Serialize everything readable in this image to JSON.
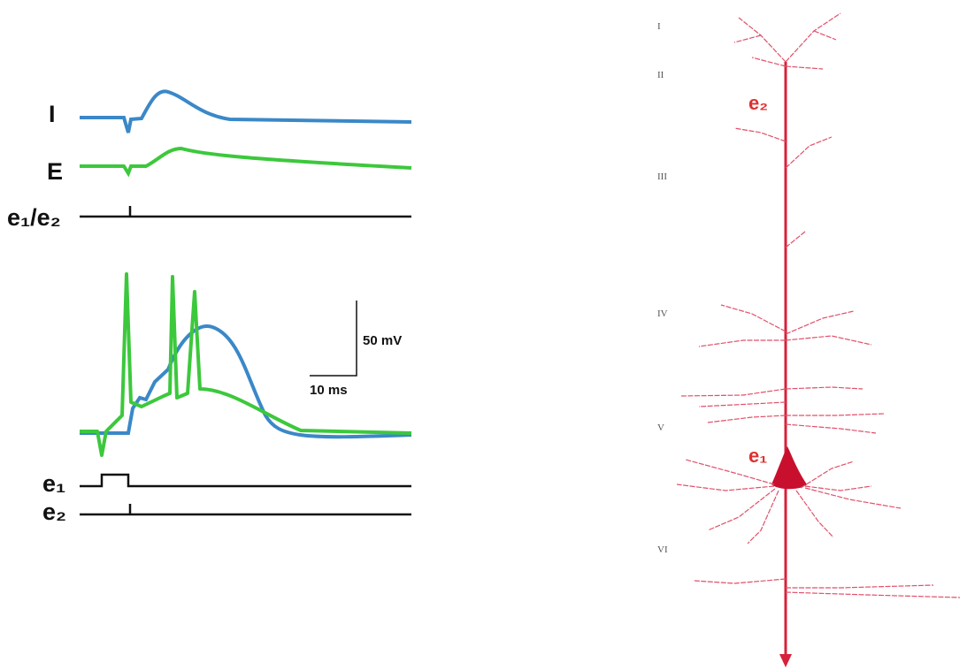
{
  "traces": {
    "top": {
      "i": "I",
      "e": "E",
      "stim": "e₁/e₂"
    },
    "bottom": {
      "scale_voltage": "50 mV",
      "scale_time": "10 ms",
      "stim1": "e₁",
      "stim2": "e₂"
    }
  },
  "neuron": {
    "layers": [
      "I",
      "II",
      "III",
      "IV",
      "V",
      "VI"
    ],
    "site_top": "e₂",
    "site_soma": "e₁"
  }
}
